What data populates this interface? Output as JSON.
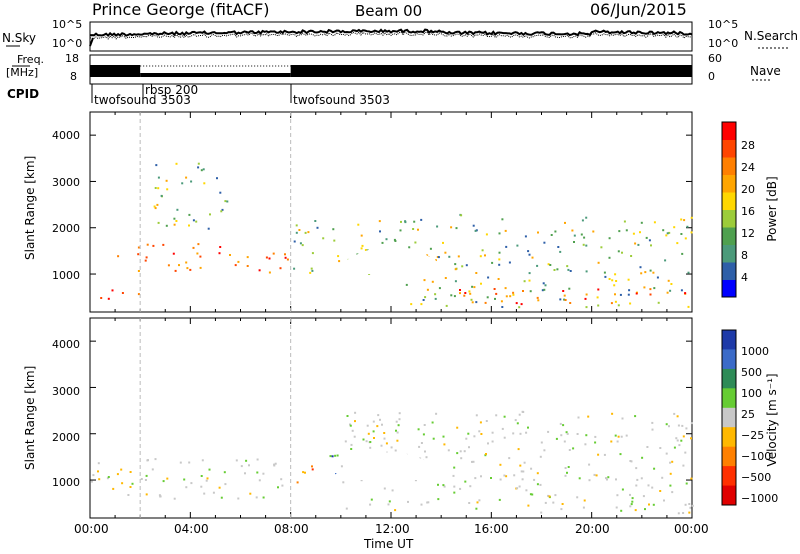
{
  "header": {
    "station": "Prince George (fitACF)",
    "beam": "Beam 00",
    "date": "06/Jun/2015"
  },
  "top_strip": {
    "left_label": "N.Sky",
    "right_label": "N.Search",
    "left_ticks": [
      "10^5",
      "10^0"
    ],
    "right_ticks": [
      "10^5",
      "10^0"
    ]
  },
  "freq_strip": {
    "label_line1": "Freq.",
    "label_line2": "[MHz]",
    "left_ticks": [
      "18",
      "8"
    ],
    "right_ticks": [
      "60",
      "0"
    ],
    "right_label": "Nave"
  },
  "cpid": {
    "label": "CPID",
    "entries": [
      "twofsound 3503",
      "rbsp 200",
      "twofsound 3503"
    ]
  },
  "axes": {
    "y_label": "Slant Range [km]",
    "y_ticks": [
      "4000",
      "3000",
      "2000",
      "1000"
    ],
    "x_label": "Time UT",
    "x_ticks": [
      "00:00",
      "04:00",
      "08:00",
      "12:00",
      "16:00",
      "20:00",
      "00:00"
    ]
  },
  "power_scale": {
    "label": "Power [dB]",
    "ticks": [
      "28",
      "24",
      "20",
      "16",
      "12",
      "8",
      "4"
    ],
    "colors": [
      "#0000ff",
      "#2e5fa8",
      "#4b9a7a",
      "#4fa04f",
      "#9ccc3a",
      "#ffd700",
      "#ffa500",
      "#ff7f00",
      "#ff4500",
      "#ff0000"
    ]
  },
  "velocity_scale": {
    "label": "Velocity [m s⁻¹]",
    "ticks": [
      "1000",
      "500",
      "100",
      "25",
      "−25",
      "−100",
      "−500",
      "−1000"
    ],
    "colors": [
      "#1e3aa8",
      "#3b6bc8",
      "#2e8b57",
      "#66cc33",
      "#c8c8c8",
      "#ffb800",
      "#ff8000",
      "#ff3000",
      "#e00000"
    ]
  },
  "chart_data": {
    "type": "heatmap",
    "x_range_hours": [
      0,
      24
    ],
    "y_range_km": [
      180,
      4500
    ],
    "cpid_segments": [
      {
        "start_hour": 0,
        "end_hour": 2,
        "name": "twofsound 3503"
      },
      {
        "start_hour": 2,
        "end_hour": 8,
        "name": "rbsp 200"
      },
      {
        "start_hour": 8,
        "end_hour": 24,
        "name": "twofsound 3503"
      }
    ],
    "power_regions": [
      {
        "t0": 0.0,
        "t1": 2.0,
        "r0": 400,
        "r1": 700,
        "level": "high"
      },
      {
        "t0": 0.0,
        "t1": 8.0,
        "r0": 1050,
        "r1": 1500,
        "level": "high"
      },
      {
        "t0": 1.8,
        "t1": 6.0,
        "r0": 1550,
        "r1": 1750,
        "level": "high"
      },
      {
        "t0": 2.5,
        "t1": 5.5,
        "r0": 2000,
        "r1": 3500,
        "level": "medium"
      },
      {
        "t0": 8.0,
        "t1": 12.5,
        "r0": 1000,
        "r1": 2200,
        "level": "medium"
      },
      {
        "t0": 12.5,
        "t1": 24.0,
        "r0": 300,
        "r1": 2300,
        "level": "medium"
      },
      {
        "t0": 14.5,
        "t1": 24.0,
        "r0": 350,
        "r1": 700,
        "level": "high"
      }
    ],
    "velocity_regions": [
      {
        "t0": 0.0,
        "t1": 8.0,
        "r0": 600,
        "r1": 1500,
        "level": "near-zero"
      },
      {
        "t0": 8.0,
        "t1": 9.0,
        "r0": 900,
        "r1": 1400,
        "level": "negative"
      },
      {
        "t0": 9.2,
        "t1": 10.5,
        "r0": 1100,
        "r1": 1600,
        "level": "positive"
      },
      {
        "t0": 10.0,
        "t1": 24.0,
        "r0": 300,
        "r1": 2500,
        "level": "near-zero"
      }
    ]
  }
}
